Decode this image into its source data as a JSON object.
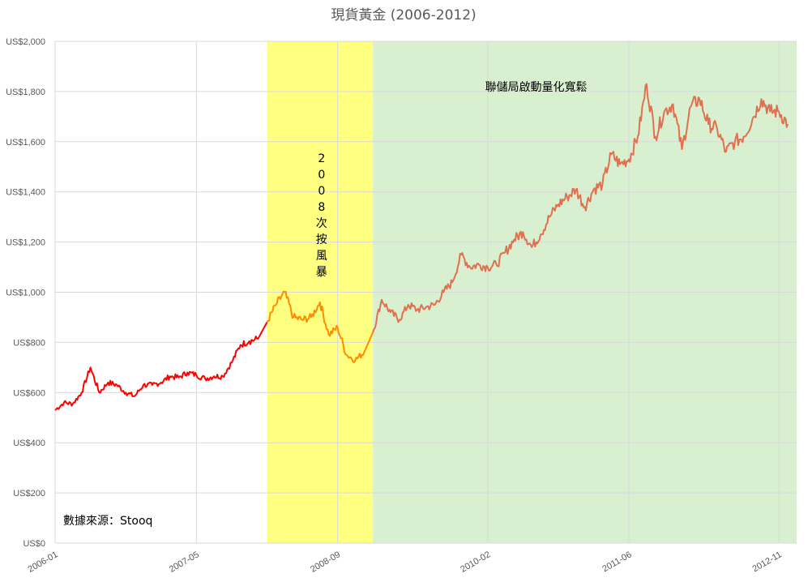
{
  "chart_data": {
    "type": "line",
    "title": "現貨黃金 (2006-2012)",
    "xlabel": "",
    "ylabel": "",
    "ylim": [
      0,
      2000
    ],
    "xlim": [
      "2006-01",
      "2012-12"
    ],
    "y_ticks": [
      "US$0",
      "US$200",
      "US$400",
      "US$600",
      "US$800",
      "US$1,000",
      "US$1,200",
      "US$1,400",
      "US$1,600",
      "US$1,800",
      "US$2,000"
    ],
    "y_tick_values": [
      0,
      200,
      400,
      600,
      800,
      1000,
      1200,
      1400,
      1600,
      1800,
      2000
    ],
    "x_ticks": [
      "2006-01",
      "2007-05",
      "2008-09",
      "2010-02",
      "2011-06",
      "2012-11"
    ],
    "grid": true,
    "series": [
      {
        "color": "#ff0000",
        "points": [
          [
            "2006-01",
            530
          ],
          [
            "2006-02",
            560
          ],
          [
            "2006-03",
            555
          ],
          [
            "2006-04",
            600
          ],
          [
            "2006-05",
            700
          ],
          [
            "2006-06",
            600
          ],
          [
            "2006-07",
            640
          ],
          [
            "2006-08",
            630
          ],
          [
            "2006-09",
            600
          ],
          [
            "2006-10",
            585
          ],
          [
            "2006-11",
            630
          ],
          [
            "2006-12",
            630
          ],
          [
            "2007-01",
            640
          ],
          [
            "2007-02",
            665
          ],
          [
            "2007-03",
            660
          ],
          [
            "2007-04",
            680
          ],
          [
            "2007-05",
            670
          ],
          [
            "2007-06",
            655
          ],
          [
            "2007-07",
            665
          ],
          [
            "2007-08",
            665
          ],
          [
            "2007-09",
            720
          ],
          [
            "2007-10",
            790
          ],
          [
            "2007-11",
            805
          ],
          [
            "2007-12",
            815
          ]
        ]
      },
      {
        "color": "#ff8c00",
        "points": [
          [
            "2008-01",
            880
          ],
          [
            "2008-02",
            950
          ],
          [
            "2008-03",
            1000
          ],
          [
            "2008-04",
            900
          ],
          [
            "2008-05",
            890
          ],
          [
            "2008-06",
            900
          ],
          [
            "2008-07",
            960
          ],
          [
            "2008-08",
            830
          ],
          [
            "2008-09",
            860
          ],
          [
            "2008-10",
            750
          ],
          [
            "2008-11",
            730
          ],
          [
            "2008-12",
            760
          ]
        ]
      },
      {
        "color": "#e07050",
        "points": [
          [
            "2009-01",
            840
          ],
          [
            "2009-02",
            970
          ],
          [
            "2009-03",
            920
          ],
          [
            "2009-04",
            890
          ],
          [
            "2009-05",
            950
          ],
          [
            "2009-06",
            930
          ],
          [
            "2009-07",
            940
          ],
          [
            "2009-08",
            950
          ],
          [
            "2009-09",
            1000
          ],
          [
            "2009-10",
            1040
          ],
          [
            "2009-11",
            1150
          ],
          [
            "2009-12",
            1100
          ],
          [
            "2010-01",
            1110
          ],
          [
            "2010-02",
            1100
          ],
          [
            "2010-03",
            1110
          ],
          [
            "2010-04",
            1160
          ],
          [
            "2010-05",
            1210
          ],
          [
            "2010-06",
            1240
          ],
          [
            "2010-07",
            1180
          ],
          [
            "2010-08",
            1230
          ],
          [
            "2010-09",
            1300
          ],
          [
            "2010-10",
            1350
          ],
          [
            "2010-11",
            1380
          ],
          [
            "2010-12",
            1410
          ],
          [
            "2011-01",
            1340
          ],
          [
            "2011-02",
            1410
          ],
          [
            "2011-03",
            1430
          ],
          [
            "2011-04",
            1550
          ],
          [
            "2011-05",
            1510
          ],
          [
            "2011-06",
            1530
          ],
          [
            "2011-07",
            1620
          ],
          [
            "2011-08",
            1830
          ],
          [
            "2011-09",
            1620
          ],
          [
            "2011-10",
            1720
          ],
          [
            "2011-11",
            1750
          ],
          [
            "2011-12",
            1570
          ],
          [
            "2012-01",
            1740
          ],
          [
            "2012-02",
            1770
          ],
          [
            "2012-03",
            1670
          ],
          [
            "2012-04",
            1650
          ],
          [
            "2012-05",
            1560
          ],
          [
            "2012-06",
            1600
          ],
          [
            "2012-07",
            1620
          ],
          [
            "2012-08",
            1690
          ],
          [
            "2012-09",
            1770
          ],
          [
            "2012-10",
            1720
          ],
          [
            "2012-11",
            1720
          ],
          [
            "2012-12",
            1670
          ]
        ]
      }
    ],
    "bands": [
      {
        "from": "2008-01",
        "to": "2008-12",
        "color": "#ffff80",
        "label": "2008次按風暴",
        "orientation": "vertical"
      },
      {
        "from": "2009-01",
        "to": "2012-12",
        "color": "#d8f0d0",
        "label": "聯儲局啟動量化寬鬆",
        "orientation": "horizontal"
      }
    ],
    "source_note": "數據來源：Stooq"
  }
}
